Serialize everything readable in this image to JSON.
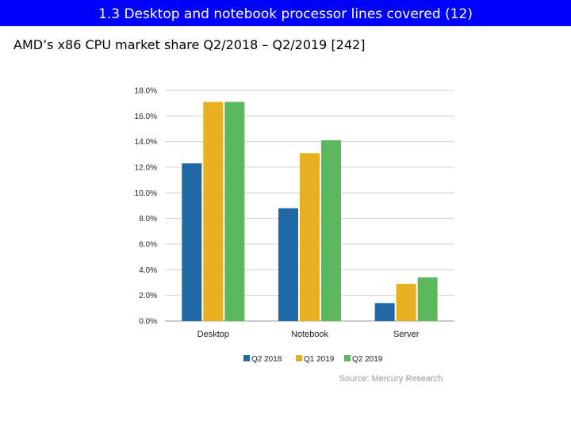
{
  "slide": {
    "title": "1.3 Desktop and notebook processor lines covered (12)",
    "subtitle": "AMD’s x86 CPU market share Q2/2018 – Q2/2019 [242]"
  },
  "colors": {
    "title_bg": "#0000ff",
    "grid": "#d0d0d0",
    "axis": "#9a9a9a"
  },
  "chart_data": {
    "type": "bar",
    "title": "",
    "xlabel": "",
    "ylabel": "",
    "ylim": [
      0,
      18
    ],
    "yticks": [
      0,
      2,
      4,
      6,
      8,
      10,
      12,
      14,
      16,
      18
    ],
    "ytick_labels": [
      "0.0%",
      "2.0%",
      "4.0%",
      "6.0%",
      "8.0%",
      "10.0%",
      "12.0%",
      "14.0%",
      "16.0%",
      "18.0%"
    ],
    "grid": true,
    "legend_position": "bottom",
    "categories": [
      "Desktop",
      "Notebook",
      "Server"
    ],
    "series": [
      {
        "name": "Q2 2018",
        "color": "#1f6aa5",
        "values": [
          12.3,
          8.8,
          1.4
        ]
      },
      {
        "name": "Q1 2019",
        "color": "#e8b020",
        "values": [
          17.1,
          13.1,
          2.9
        ]
      },
      {
        "name": "Q2 2019",
        "color": "#5cb85c",
        "values": [
          17.1,
          14.1,
          3.4
        ]
      }
    ],
    "source": "Source: Mercury Research"
  }
}
